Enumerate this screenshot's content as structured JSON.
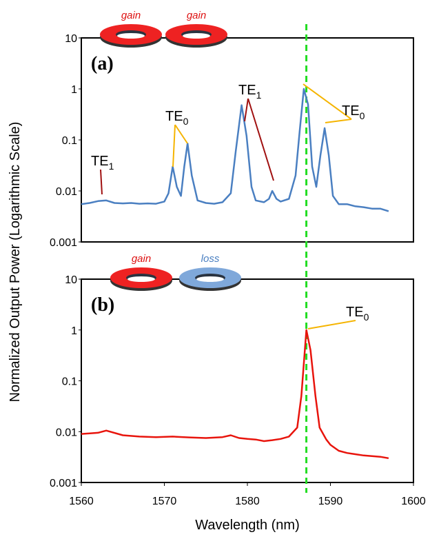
{
  "chart_data": [
    {
      "type": "line",
      "panel_label": "(a)",
      "ylabel": "Normalized Output Power (Logarithmic Scale)",
      "rings": [
        {
          "label": "gain",
          "color": "#ee2222",
          "label_color": "#dd1111"
        },
        {
          "label": "gain",
          "color": "#ee2222",
          "label_color": "#dd1111"
        }
      ],
      "xlim": [
        1560,
        1600
      ],
      "ylim": [
        0.001,
        10
      ],
      "yticks": [
        10,
        1,
        0.1,
        0.01,
        0.001
      ],
      "log_y": true,
      "color": "#4a7fc1",
      "x": [
        1560,
        1561,
        1562,
        1563,
        1564,
        1565,
        1566,
        1567,
        1568,
        1569,
        1570,
        1570.5,
        1571,
        1571.5,
        1572,
        1572.4,
        1572.8,
        1573.3,
        1574,
        1575,
        1576,
        1577,
        1578,
        1578.6,
        1579.3,
        1579.9,
        1580.5,
        1581,
        1582,
        1582.6,
        1583,
        1583.5,
        1584,
        1585,
        1585.8,
        1586.3,
        1586.8,
        1587.3,
        1587.8,
        1588.3,
        1588.8,
        1589.3,
        1589.8,
        1590.3,
        1591,
        1592,
        1593,
        1594,
        1595,
        1596,
        1597
      ],
      "values": [
        0.0055,
        0.0058,
        0.0063,
        0.0065,
        0.0058,
        0.0057,
        0.0058,
        0.0056,
        0.0057,
        0.0056,
        0.0062,
        0.009,
        0.03,
        0.012,
        0.008,
        0.03,
        0.085,
        0.02,
        0.0065,
        0.0058,
        0.0056,
        0.006,
        0.009,
        0.06,
        0.48,
        0.12,
        0.012,
        0.0065,
        0.006,
        0.007,
        0.01,
        0.007,
        0.0062,
        0.007,
        0.02,
        0.15,
        1.0,
        0.5,
        0.03,
        0.012,
        0.05,
        0.17,
        0.05,
        0.008,
        0.0055,
        0.0055,
        0.005,
        0.0048,
        0.0045,
        0.0045,
        0.004
      ],
      "vline": {
        "x": 1587.1,
        "color": "#22dd22"
      },
      "annotations": [
        {
          "text": "TE",
          "sub": "1",
          "color": "#a01010"
        },
        {
          "text": "TE",
          "sub": "0",
          "color": "#f5b400"
        },
        {
          "text": "TE",
          "sub": "1",
          "color": "#a01010"
        },
        {
          "text": "TE",
          "sub": "0",
          "color": "#f5b400"
        }
      ]
    },
    {
      "type": "line",
      "panel_label": "(b)",
      "xlabel": "Wavelength (nm)",
      "rings": [
        {
          "label": "gain",
          "color": "#ee2222",
          "label_color": "#dd1111"
        },
        {
          "label": "loss",
          "color": "#7fa8da",
          "label_color": "#4a7fc1"
        }
      ],
      "xlim": [
        1560,
        1600
      ],
      "xticks": [
        1560,
        1570,
        1580,
        1590,
        1600
      ],
      "ylim": [
        0.001,
        10
      ],
      "yticks": [
        10,
        1,
        0.1,
        0.01,
        0.001
      ],
      "log_y": true,
      "color": "#e8140c",
      "x": [
        1560,
        1562,
        1563,
        1565,
        1567,
        1569,
        1571,
        1573,
        1575,
        1577,
        1578,
        1579,
        1580,
        1581,
        1582,
        1583,
        1584,
        1585,
        1586,
        1586.5,
        1587.1,
        1587.6,
        1588.2,
        1588.7,
        1589.5,
        1590,
        1591,
        1592,
        1593,
        1594,
        1595,
        1596,
        1597
      ],
      "values": [
        0.009,
        0.0095,
        0.0105,
        0.0085,
        0.008,
        0.0078,
        0.008,
        0.0077,
        0.0075,
        0.0078,
        0.0085,
        0.0075,
        0.0072,
        0.007,
        0.0065,
        0.0068,
        0.0072,
        0.008,
        0.012,
        0.05,
        1.0,
        0.4,
        0.05,
        0.012,
        0.007,
        0.0055,
        0.0042,
        0.0038,
        0.0036,
        0.0034,
        0.0033,
        0.0032,
        0.003
      ],
      "vline": {
        "x": 1587.1,
        "color": "#22dd22"
      },
      "annotations": [
        {
          "text": "TE",
          "sub": "0",
          "color": "#f5b400"
        }
      ]
    }
  ]
}
